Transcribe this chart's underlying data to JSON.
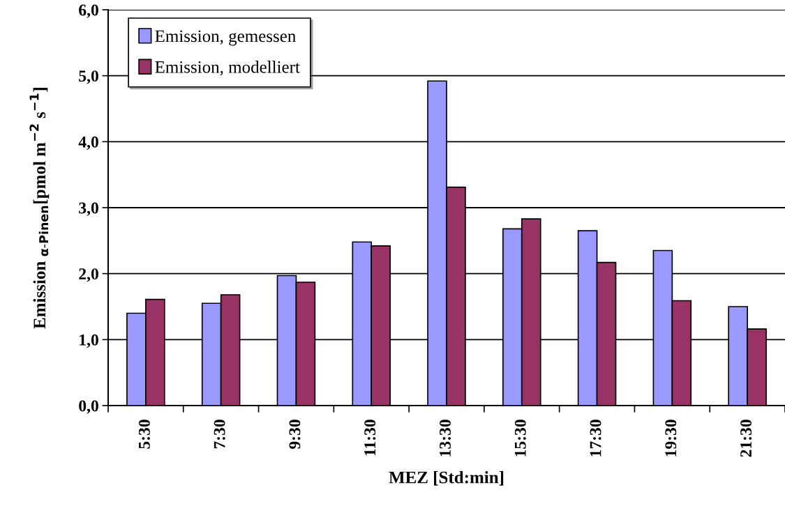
{
  "chart_data": {
    "type": "bar",
    "xlabel": "MEZ [Std:min]",
    "ylabel": "Emission $_{α-Pinen}$[pmol m$^{−2}$ s$^{−1}$]",
    "categories": [
      "5:30",
      "7:30",
      "9:30",
      "11:30",
      "13:30",
      "15:30",
      "17:30",
      "19:30",
      "21:30"
    ],
    "series": [
      {
        "name": "Emission, gemessen",
        "color": "#9999ff",
        "values": [
          1.4,
          1.55,
          1.97,
          2.48,
          4.92,
          2.68,
          2.65,
          2.35,
          1.5
        ]
      },
      {
        "name": "Emission, modelliert",
        "color": "#993366",
        "values": [
          1.61,
          1.68,
          1.87,
          2.42,
          3.31,
          2.83,
          2.17,
          1.59,
          1.16
        ]
      }
    ],
    "ylim": [
      0,
      6
    ],
    "yticks": [
      {
        "value": 0,
        "label": "0,0"
      },
      {
        "value": 1,
        "label": "1,0"
      },
      {
        "value": 2,
        "label": "2,0"
      },
      {
        "value": 3,
        "label": "3,0"
      },
      {
        "value": 4,
        "label": "4,0"
      },
      {
        "value": 5,
        "label": "5,0"
      },
      {
        "value": 6,
        "label": "6,0"
      }
    ],
    "grid": "y",
    "legend": "top left"
  }
}
